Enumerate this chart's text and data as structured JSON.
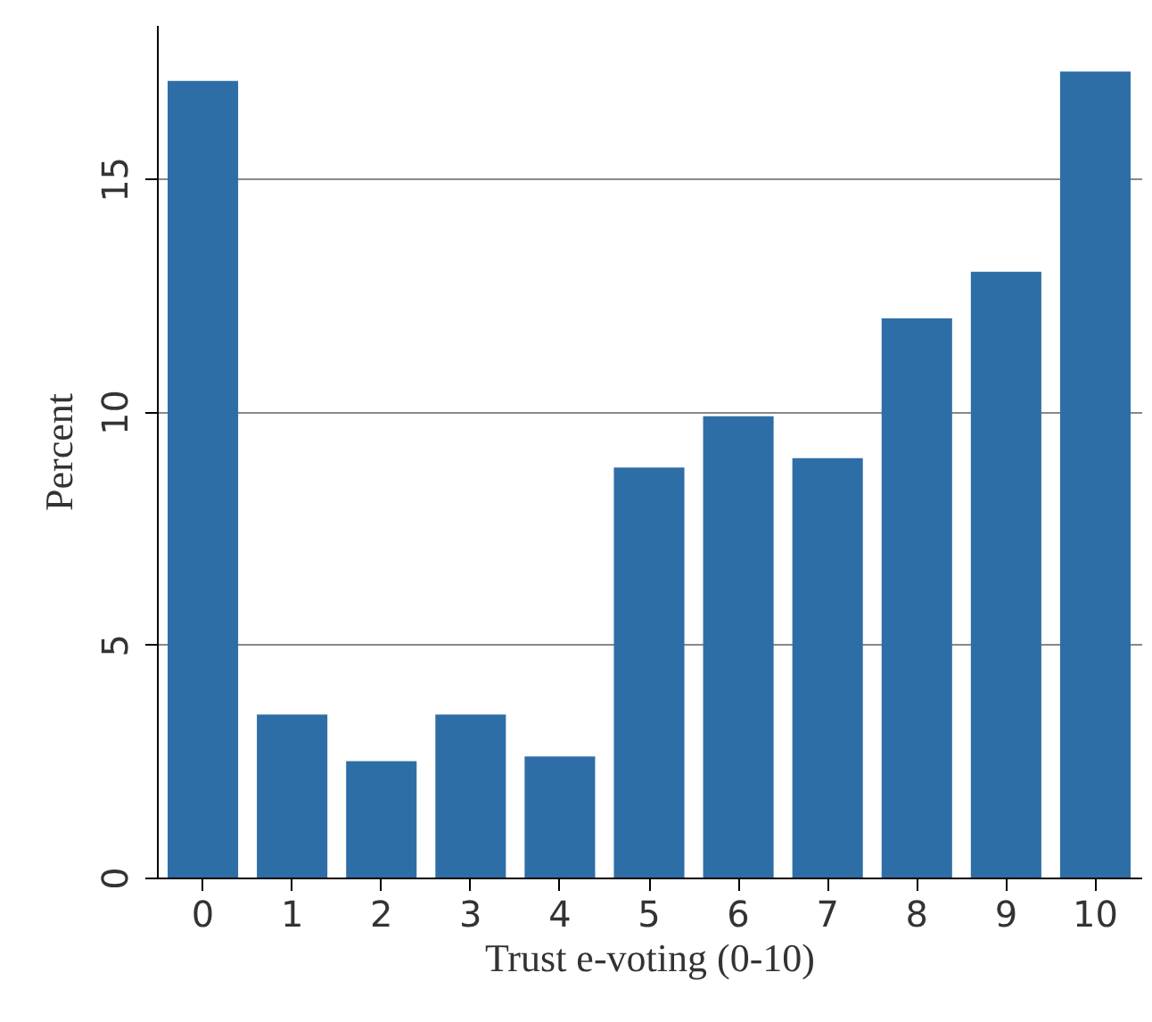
{
  "chart_data": {
    "type": "bar",
    "xlabel": "Trust e-voting (0-10)",
    "ylabel": "Percent",
    "categories": [
      "0",
      "1",
      "2",
      "3",
      "4",
      "5",
      "6",
      "7",
      "8",
      "9",
      "10"
    ],
    "values": [
      17.1,
      3.5,
      2.5,
      3.5,
      2.6,
      8.8,
      9.9,
      9.0,
      12.0,
      13.0,
      17.3
    ],
    "color": "#2e6ea6",
    "ylim": [
      0,
      18.3
    ],
    "yticks": [
      0,
      5,
      10,
      15
    ],
    "grid": "y"
  }
}
